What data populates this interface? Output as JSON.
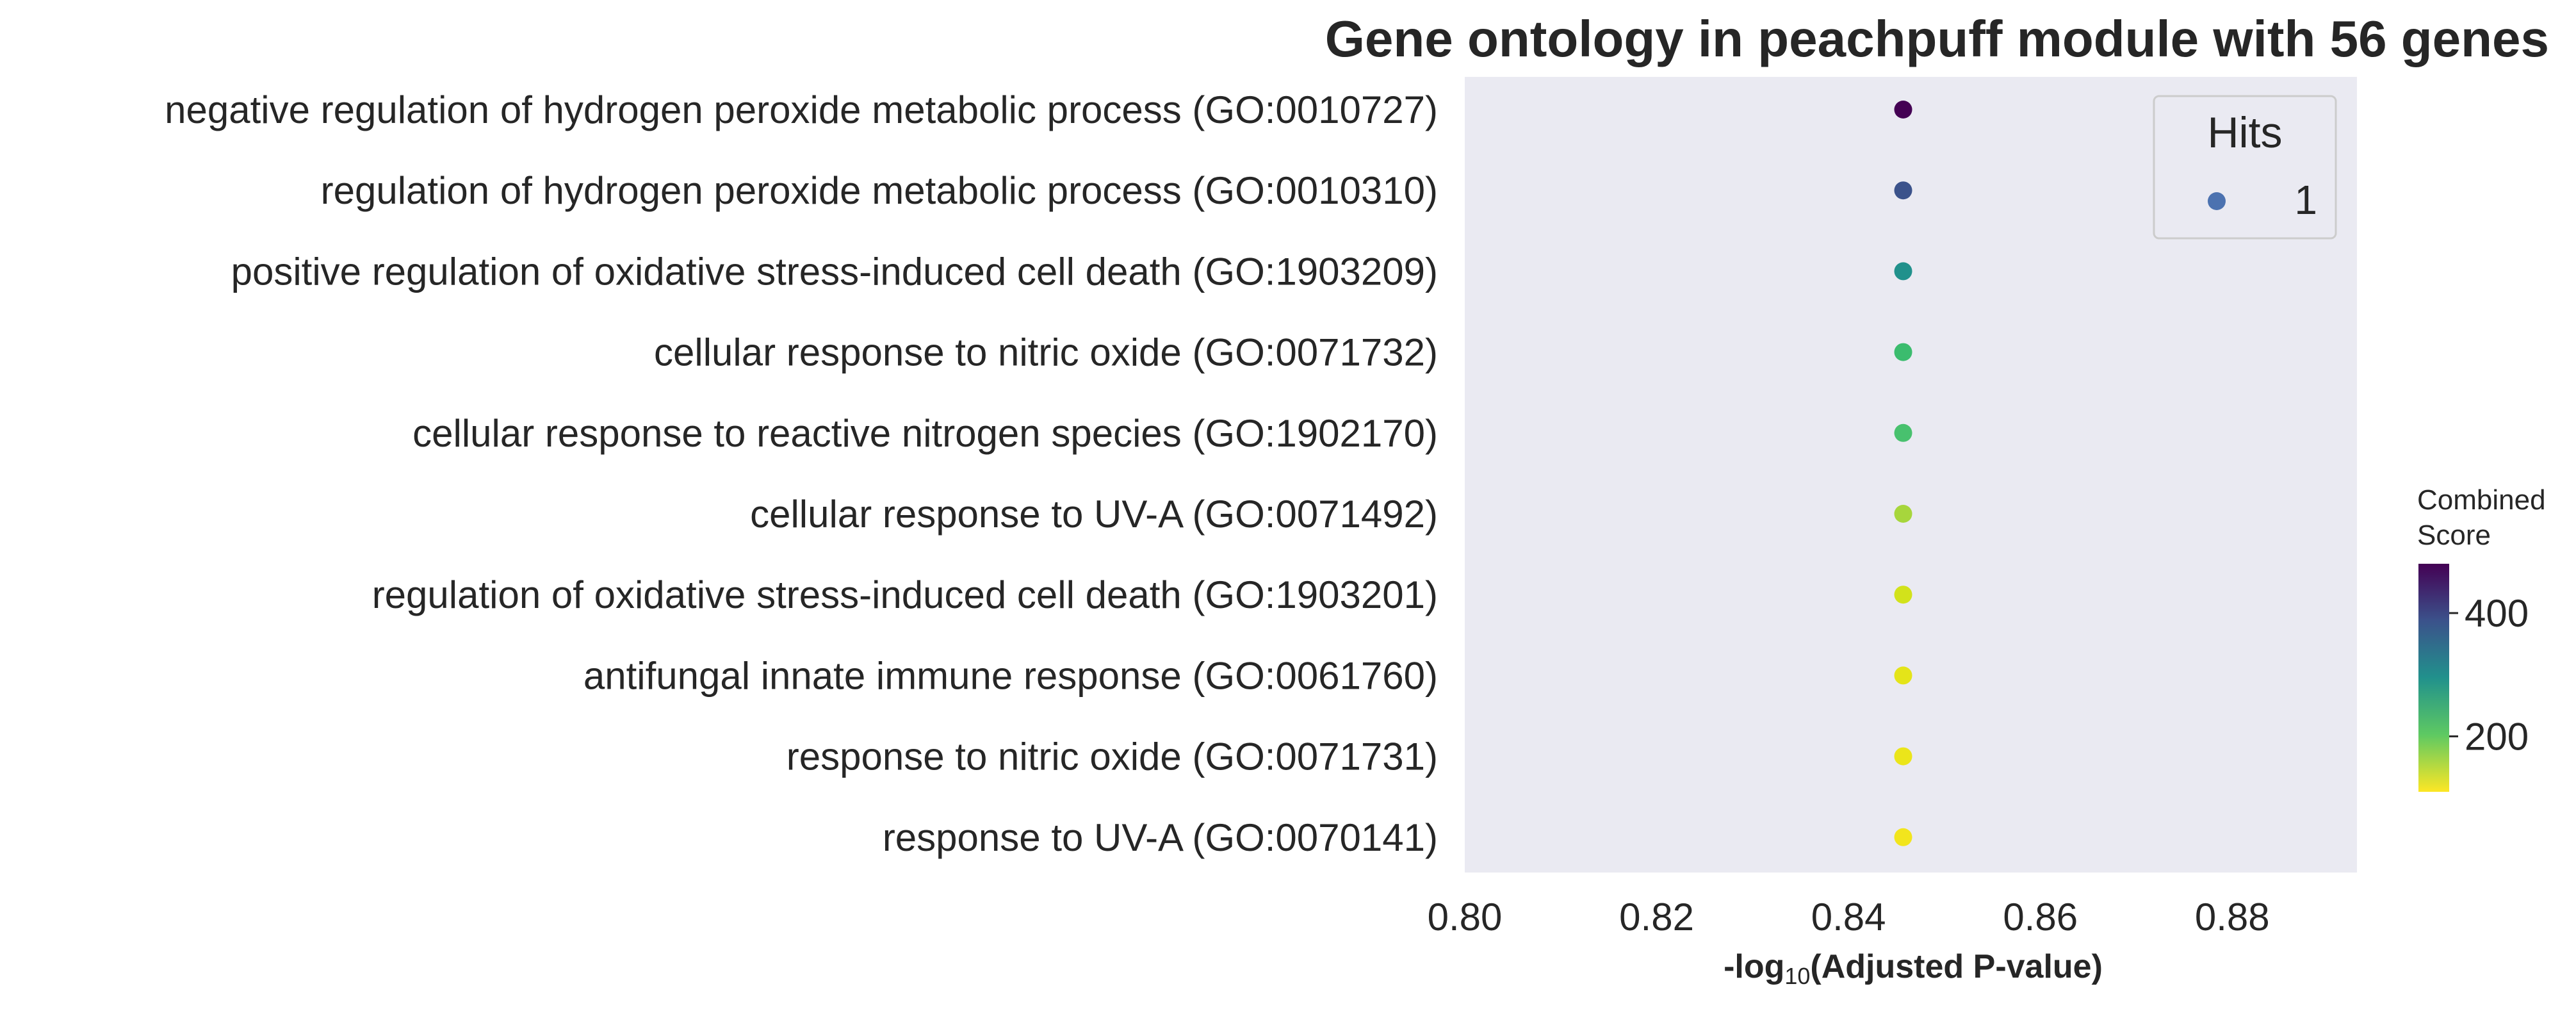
{
  "chart_data": {
    "type": "scatter",
    "title": "Gene ontology in peachpuff module with 56 genes",
    "xlabel_parts": {
      "prefix": "-log",
      "sub": "10",
      "suffix": "(Adjusted P-value)"
    },
    "xlim": [
      0.8,
      0.893
    ],
    "xticks": [
      "0.80",
      "0.82",
      "0.84",
      "0.86",
      "0.88"
    ],
    "xtick_values": [
      0.8,
      0.82,
      0.84,
      0.86,
      0.88
    ],
    "grid": false,
    "background": "#eaeaf2",
    "categories": [
      "negative regulation of hydrogen peroxide metabolic process (GO:0010727)",
      "regulation of hydrogen peroxide metabolic process (GO:0010310)",
      "positive regulation of oxidative stress-induced cell death (GO:1903209)",
      "cellular response to nitric oxide (GO:0071732)",
      "cellular response to reactive nitrogen species (GO:1902170)",
      "cellular response to UV-A (GO:0071492)",
      "regulation of oxidative stress-induced cell death (GO:1903201)",
      "antifungal innate immune response (GO:0061760)",
      "response to nitric oxide (GO:0071731)",
      "response to UV-A (GO:0070141)"
    ],
    "x": [
      0.8457,
      0.8457,
      0.8457,
      0.8457,
      0.8457,
      0.8457,
      0.8457,
      0.8457,
      0.8457,
      0.8457
    ],
    "hits": [
      1,
      1,
      1,
      1,
      1,
      1,
      1,
      1,
      1,
      1
    ],
    "combined_score": [
      470,
      380,
      300,
      235,
      225,
      170,
      140,
      125,
      120,
      115
    ],
    "point_colors": [
      "#440154",
      "#3b528b",
      "#21918c",
      "#3bbc6e",
      "#48c16e",
      "#a7d63c",
      "#d2e21b",
      "#e4e419",
      "#ebe51a",
      "#f2e51d"
    ],
    "legend": {
      "title": "Hits",
      "placement": "top-right",
      "entries": [
        {
          "label": "1",
          "color": "#4c72b0"
        }
      ]
    },
    "colorbar": {
      "title_lines": [
        "Combined",
        "Score"
      ],
      "ticks": [
        "400",
        "200"
      ],
      "tick_values": [
        400,
        200
      ],
      "range": [
        110,
        480
      ],
      "colormap": "viridis"
    }
  }
}
